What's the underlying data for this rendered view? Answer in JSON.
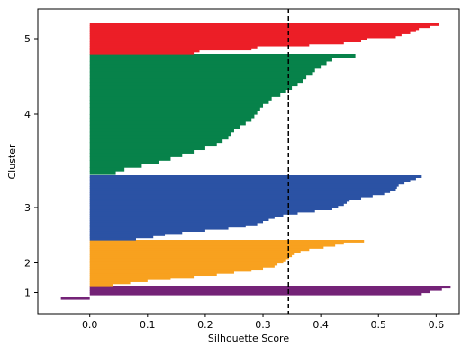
{
  "chart_data": {
    "type": "silhouette",
    "xlabel": "Silhouette Score",
    "ylabel": "Cluster",
    "xlim": [
      -0.09,
      0.64
    ],
    "x_ticks": [
      "0.0",
      "0.1",
      "0.2",
      "0.3",
      "0.4",
      "0.5",
      "0.6"
    ],
    "x_tick_values": [
      0.0,
      0.1,
      0.2,
      0.3,
      0.4,
      0.5,
      0.6
    ],
    "average_silhouette": 0.344,
    "average_line_style": "dashed",
    "average_line_color": "#000000",
    "clusters": [
      {
        "label": "1",
        "color": "#742377",
        "values": [
          0.625,
          0.61,
          0.59,
          0.575,
          0.0,
          -0.05
        ]
      },
      {
        "label": "2",
        "color": "#f8a11f",
        "values": [
          0.475,
          0.44,
          0.425,
          0.405,
          0.38,
          0.365,
          0.355,
          0.35,
          0.345,
          0.34,
          0.335,
          0.325,
          0.32,
          0.3,
          0.28,
          0.25,
          0.22,
          0.18,
          0.14,
          0.1,
          0.07,
          0.04
        ]
      },
      {
        "label": "3",
        "color": "#2b52a4",
        "values": [
          0.575,
          0.565,
          0.555,
          0.545,
          0.535,
          0.532,
          0.53,
          0.52,
          0.51,
          0.49,
          0.47,
          0.45,
          0.445,
          0.44,
          0.43,
          0.42,
          0.39,
          0.36,
          0.335,
          0.32,
          0.31,
          0.3,
          0.29,
          0.27,
          0.24,
          0.2,
          0.16,
          0.13,
          0.11,
          0.08
        ]
      },
      {
        "label": "4",
        "color": "#07824a",
        "values": [
          0.46,
          0.42,
          0.41,
          0.4,
          0.39,
          0.385,
          0.375,
          0.37,
          0.36,
          0.35,
          0.34,
          0.33,
          0.315,
          0.31,
          0.3,
          0.295,
          0.29,
          0.285,
          0.28,
          0.27,
          0.26,
          0.25,
          0.245,
          0.24,
          0.23,
          0.22,
          0.2,
          0.18,
          0.16,
          0.14,
          0.12,
          0.09,
          0.06,
          0.045
        ]
      },
      {
        "label": "5",
        "color": "#ec1e27",
        "values": [
          0.605,
          0.59,
          0.57,
          0.565,
          0.555,
          0.54,
          0.53,
          0.48,
          0.47,
          0.44,
          0.38,
          0.29,
          0.28,
          0.19,
          0.18
        ]
      }
    ]
  }
}
